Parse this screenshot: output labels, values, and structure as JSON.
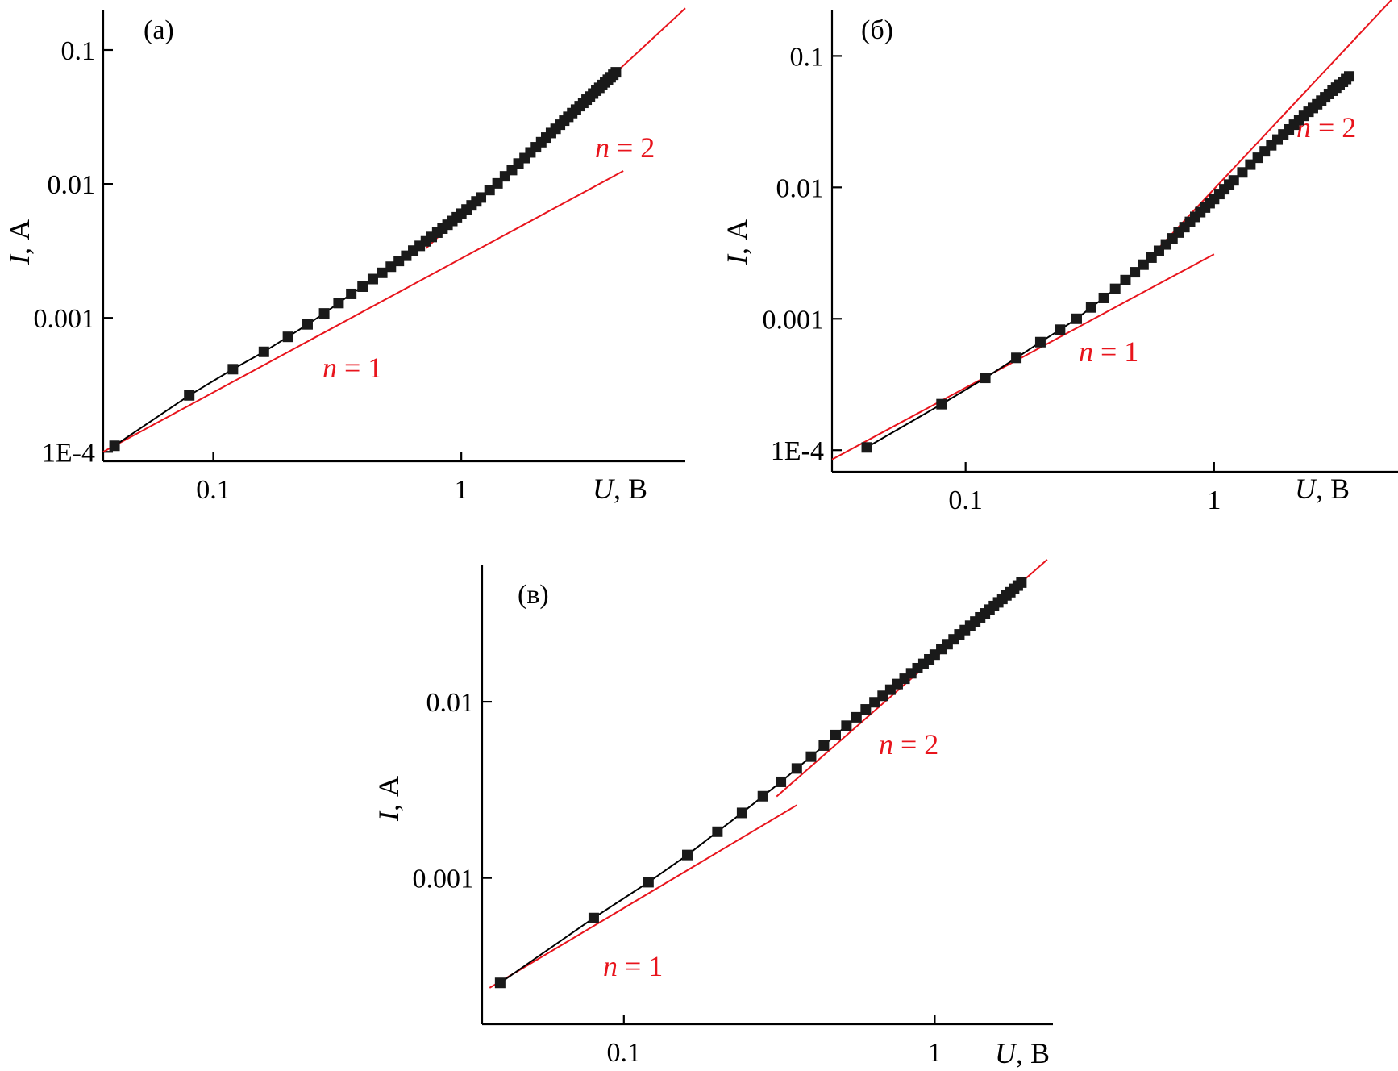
{
  "chart_data": [
    {
      "type": "scatter",
      "panel_label": "(а)",
      "xscale": "log",
      "yscale": "log",
      "xlim": [
        0.036,
        8.0
      ],
      "ylim": [
        8.5e-05,
        0.2
      ],
      "xticks": [
        {
          "value": 0.1,
          "label": "0.1"
        },
        {
          "value": 1,
          "label": "1"
        }
      ],
      "yticks": [
        {
          "value": 0.0001,
          "label": "1E-4"
        },
        {
          "value": 0.001,
          "label": "0.001"
        },
        {
          "value": 0.01,
          "label": "0.01"
        },
        {
          "value": 0.1,
          "label": "0.1"
        }
      ],
      "xlabel": {
        "var": "U",
        "unit": ", В"
      },
      "ylabel": {
        "var": "I",
        "unit": ", А"
      },
      "series": [
        {
          "x": [
            0.04,
            0.08,
            0.12,
            0.16,
            0.2,
            0.24,
            0.28,
            0.32,
            0.36,
            0.4,
            0.44,
            0.48,
            0.52,
            0.56,
            0.6,
            0.64,
            0.68,
            0.72,
            0.76,
            0.8,
            0.84,
            0.88,
            0.92,
            0.96,
            1.0,
            1.05,
            1.1,
            1.15,
            1.2,
            1.3,
            1.4,
            1.5,
            1.6,
            1.7,
            1.8,
            1.9,
            2.0,
            2.1,
            2.2,
            2.3,
            2.4,
            2.5,
            2.6,
            2.7,
            2.8,
            2.9,
            3.0,
            3.1,
            3.2,
            3.3,
            3.4,
            3.5,
            3.6,
            3.7,
            3.8,
            3.9,
            4.0,
            4.1,
            4.2
          ],
          "y": [
            0.000111,
            0.000264,
            0.000414,
            0.000558,
            0.000722,
            0.000895,
            0.00108,
            0.00129,
            0.00151,
            0.00171,
            0.00195,
            0.00217,
            0.00241,
            0.00266,
            0.00291,
            0.00318,
            0.00345,
            0.00373,
            0.00402,
            0.00433,
            0.00464,
            0.00496,
            0.00529,
            0.00564,
            0.006,
            0.00645,
            0.00692,
            0.00741,
            0.00792,
            0.009,
            0.0101,
            0.0114,
            0.0127,
            0.0142,
            0.0156,
            0.0172,
            0.0188,
            0.0205,
            0.0222,
            0.024,
            0.0258,
            0.0277,
            0.0297,
            0.0317,
            0.0338,
            0.0359,
            0.0381,
            0.0403,
            0.0426,
            0.0449,
            0.0473,
            0.0497,
            0.0522,
            0.0548,
            0.0573,
            0.06,
            0.0626,
            0.0654,
            0.0682
          ]
        }
      ],
      "fits": [
        {
          "label_var": "n",
          "label_text": " = 1",
          "x": [
            0.036,
            4.5
          ],
          "y": [
            0.0001,
            0.0125
          ]
        },
        {
          "label_var": "n",
          "label_text": " = 2",
          "x": [
            0.72,
            8.0
          ],
          "y": [
            0.0033,
            0.205
          ]
        }
      ]
    },
    {
      "type": "scatter",
      "panel_label": "(б)",
      "xscale": "log",
      "yscale": "log",
      "xlim": [
        0.029,
        5.5
      ],
      "ylim": [
        6.85e-05,
        0.225
      ],
      "xticks": [
        {
          "value": 0.1,
          "label": "0.1"
        },
        {
          "value": 1,
          "label": "1"
        }
      ],
      "yticks": [
        {
          "value": 0.0001,
          "label": "1E-4"
        },
        {
          "value": 0.001,
          "label": "0.001"
        },
        {
          "value": 0.01,
          "label": "0.01"
        },
        {
          "value": 0.1,
          "label": "0.1"
        }
      ],
      "xlabel": {
        "var": "U",
        "unit": ", В"
      },
      "ylabel": {
        "var": "I",
        "unit": ", А"
      },
      "series": [
        {
          "x": [
            0.04,
            0.08,
            0.12,
            0.16,
            0.2,
            0.24,
            0.28,
            0.32,
            0.36,
            0.4,
            0.44,
            0.48,
            0.52,
            0.56,
            0.6,
            0.64,
            0.68,
            0.72,
            0.76,
            0.8,
            0.84,
            0.88,
            0.92,
            0.96,
            1.0,
            1.05,
            1.1,
            1.15,
            1.2,
            1.3,
            1.4,
            1.5,
            1.6,
            1.7,
            1.8,
            1.9,
            2.0,
            2.1,
            2.2,
            2.3,
            2.4,
            2.5,
            2.6,
            2.7,
            2.8,
            2.9,
            3.0,
            3.1,
            3.2,
            3.3,
            3.4,
            3.5
          ],
          "y": [
            0.000105,
            0.000224,
            0.000355,
            0.000504,
            0.000664,
            0.000826,
            0.001,
            0.00122,
            0.00144,
            0.00169,
            0.00197,
            0.00226,
            0.00258,
            0.00292,
            0.00329,
            0.00368,
            0.00409,
            0.00453,
            0.00498,
            0.00546,
            0.00596,
            0.00648,
            0.00702,
            0.00758,
            0.00816,
            0.0089,
            0.00968,
            0.0105,
            0.0113,
            0.013,
            0.0149,
            0.0168,
            0.0188,
            0.0209,
            0.0231,
            0.0253,
            0.0276,
            0.03,
            0.0325,
            0.035,
            0.0376,
            0.0402,
            0.0429,
            0.0457,
            0.0485,
            0.0514,
            0.0544,
            0.0574,
            0.0604,
            0.0635,
            0.0667,
            0.0699
          ]
        }
      ],
      "fits": [
        {
          "label_var": "n",
          "label_text": " = 1",
          "x": [
            0.029,
            1.0
          ],
          "y": [
            8.5e-05,
            0.0031
          ]
        },
        {
          "label_var": "n",
          "label_text": " = 2",
          "x": [
            0.5,
            5.5
          ],
          "y": [
            0.0024,
            0.302
          ]
        }
      ]
    },
    {
      "type": "scatter",
      "panel_label": "(в)",
      "xscale": "log",
      "yscale": "log",
      "xlim": [
        0.035,
        2.4
      ],
      "ylim": [
        0.000148,
        0.06
      ],
      "xticks": [
        {
          "value": 0.1,
          "label": "0.1"
        },
        {
          "value": 1,
          "label": "1"
        }
      ],
      "yticks": [
        {
          "value": 0.001,
          "label": "0.001"
        },
        {
          "value": 0.01,
          "label": "0.01"
        }
      ],
      "xlabel": {
        "var": "U",
        "unit": ", В"
      },
      "ylabel": {
        "var": "I",
        "unit": ", А"
      },
      "series": [
        {
          "x": [
            0.04,
            0.08,
            0.12,
            0.16,
            0.2,
            0.24,
            0.28,
            0.32,
            0.36,
            0.4,
            0.44,
            0.48,
            0.52,
            0.56,
            0.6,
            0.64,
            0.68,
            0.72,
            0.76,
            0.8,
            0.84,
            0.88,
            0.92,
            0.96,
            1.0,
            1.05,
            1.1,
            1.15,
            1.2,
            1.25,
            1.3,
            1.35,
            1.4,
            1.45,
            1.5,
            1.55,
            1.6,
            1.65,
            1.7,
            1.75,
            1.8,
            1.85,
            1.9
          ],
          "y": [
            0.000254,
            0.000593,
            0.000946,
            0.00135,
            0.00183,
            0.00234,
            0.00291,
            0.00351,
            0.00418,
            0.00488,
            0.00564,
            0.00647,
            0.00731,
            0.00816,
            0.00905,
            0.00993,
            0.0108,
            0.0117,
            0.0126,
            0.0135,
            0.0145,
            0.0155,
            0.0164,
            0.0174,
            0.0185,
            0.0199,
            0.0212,
            0.0226,
            0.0241,
            0.0255,
            0.027,
            0.0285,
            0.0301,
            0.0317,
            0.0333,
            0.0349,
            0.0366,
            0.0383,
            0.0401,
            0.0418,
            0.0437,
            0.0456,
            0.0474
          ]
        }
      ],
      "fits": [
        {
          "label_var": "n",
          "label_text": " = 1",
          "x": [
            0.037,
            0.36
          ],
          "y": [
            0.000238,
            0.00259
          ]
        },
        {
          "label_var": "n",
          "label_text": " = 2",
          "x": [
            0.31,
            2.3
          ],
          "y": [
            0.0029,
            0.064
          ]
        }
      ]
    }
  ],
  "colors": {
    "fit": "#e8141c",
    "data": "#000000",
    "marker": "#1a1a1a"
  }
}
